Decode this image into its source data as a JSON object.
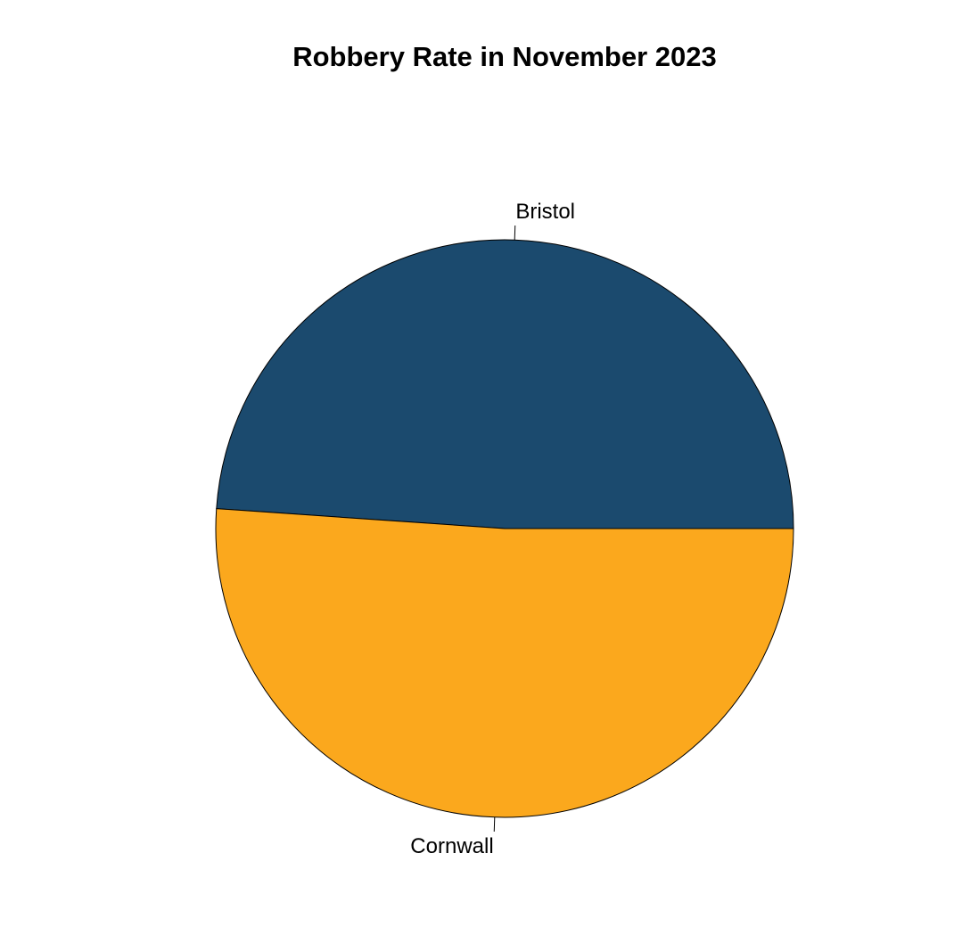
{
  "chart_data": {
    "type": "pie",
    "title": "Robbery Rate in November 2023",
    "slices": [
      {
        "label": "Bristol",
        "value": 48.9,
        "color": "#1B4A6E"
      },
      {
        "label": "Cornwall",
        "value": 51.1,
        "color": "#FBA81D"
      }
    ],
    "start_angle_deg": 0,
    "direction": "counterclockwise",
    "border_color": "#000000"
  }
}
